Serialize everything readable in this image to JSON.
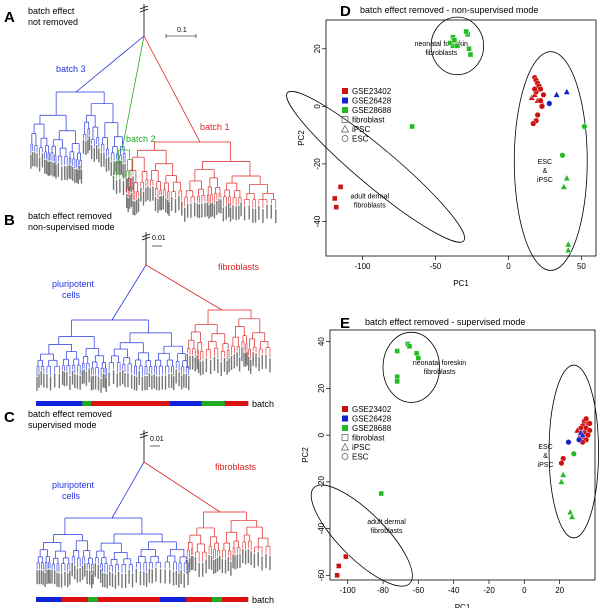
{
  "panels": {
    "A": {
      "letter": "A",
      "title": [
        "batch effect",
        "not removed"
      ],
      "scale": "0.1",
      "labels": [
        {
          "text": "batch 3",
          "color": "#2233dd"
        },
        {
          "text": "batch 2",
          "color": "#22aa22"
        },
        {
          "text": "batch 1",
          "color": "#dd2222"
        }
      ]
    },
    "B": {
      "letter": "B",
      "title": [
        "batch effect removed",
        "non-supervised mode"
      ],
      "scale": "0.01",
      "labels": [
        {
          "text": "pluripotent",
          "color": "#2233dd"
        },
        {
          "text": "cells",
          "color": "#2233dd"
        },
        {
          "text": "fibroblasts",
          "color": "#dd2222"
        }
      ],
      "bar_label": "batch"
    },
    "C": {
      "letter": "C",
      "title": [
        "batch effect removed",
        "supervised mode"
      ],
      "scale": "0.01",
      "labels": [
        {
          "text": "pluripotent",
          "color": "#2233dd"
        },
        {
          "text": "cells",
          "color": "#2233dd"
        },
        {
          "text": "fibroblasts",
          "color": "#dd2222"
        }
      ],
      "bar_label": "batch"
    }
  },
  "batch_bar_colors": {
    "GSE23402": "#dd1111",
    "GSE26428": "#1122dd",
    "GSE28688": "#22aa22"
  },
  "batch_bars": {
    "B": [
      "GSE26428",
      "GSE26428",
      "GSE28688",
      "GSE23402",
      "GSE23402",
      "GSE23402",
      "GSE23402",
      "GSE26428",
      "GSE26428",
      "GSE28688",
      "GSE23402"
    ],
    "C": [
      "GSE26428",
      "GSE23402",
      "GSE28688",
      "GSE23402",
      "GSE23402",
      "GSE23402",
      "GSE26428",
      "GSE23402",
      "GSE28688",
      "GSE23402"
    ]
  },
  "chart_data": [
    {
      "id": "D",
      "type": "scatter",
      "letter": "D",
      "title": "batch effect removed - non-supervised mode",
      "xlabel": "PC1",
      "ylabel": "PC2",
      "xlim": [
        -125,
        60
      ],
      "ylim": [
        -52,
        30
      ],
      "xticks": [
        -100,
        -50,
        0,
        50
      ],
      "yticks": [
        -40,
        -20,
        0,
        20
      ],
      "legend": {
        "placement": "left",
        "items": [
          {
            "label": "GSE23402",
            "shape": "filled-square",
            "color": "#cc1111"
          },
          {
            "label": "GSE26428",
            "shape": "filled-square",
            "color": "#1122cc"
          },
          {
            "label": "GSE28688",
            "shape": "filled-square",
            "color": "#22bb22"
          },
          {
            "label": "fibroblast",
            "shape": "open-square",
            "color": "#555555"
          },
          {
            "label": "iPSC",
            "shape": "open-triangle",
            "color": "#555555"
          },
          {
            "label": "ESC",
            "shape": "open-circle",
            "color": "#555555"
          }
        ]
      },
      "annotations": [
        {
          "lines": [
            "neonatal foreskin",
            "fibroblasts"
          ],
          "x": -46,
          "y": 21
        },
        {
          "lines": [
            "ESC",
            "&",
            "iPSC"
          ],
          "x": 25,
          "y": -20
        },
        {
          "lines": [
            "adult dermal",
            "fibroblasts"
          ],
          "x": -95,
          "y": -32
        }
      ],
      "ellipses": [
        {
          "cx": -35,
          "cy": 21,
          "rx": 18,
          "ry": 10
        },
        {
          "cx": 29,
          "cy": -19,
          "rx": 25,
          "ry": 38,
          "rot": 0
        },
        {
          "cx": -91,
          "cy": -21,
          "rx": 13,
          "ry": 40,
          "rot": -50
        }
      ],
      "series": [
        {
          "name": "GSE28688 fibroblast",
          "shape": "square",
          "color": "#22bb22",
          "points": [
            [
              -38,
              24
            ],
            [
              -38,
              21
            ],
            [
              -40,
              22
            ],
            [
              -37,
              23
            ],
            [
              -28,
              25
            ],
            [
              -29,
              26
            ],
            [
              -27,
              20
            ],
            [
              -26,
              18
            ],
            [
              -35,
              21
            ],
            [
              -66,
              -7
            ]
          ]
        },
        {
          "name": "GSE23402 fibroblast",
          "shape": "square",
          "color": "#cc1111",
          "points": [
            [
              -115,
              -28
            ],
            [
              -119,
              -32
            ],
            [
              -118,
              -35
            ]
          ]
        },
        {
          "name": "GSE23402 iPSC",
          "shape": "triangle",
          "color": "#cc1111",
          "points": [
            [
              16,
              3
            ],
            [
              20,
              2
            ],
            [
              23,
              1
            ],
            [
              18,
              4
            ]
          ]
        },
        {
          "name": "GSE23402 ESC",
          "shape": "circle",
          "color": "#cc1111",
          "points": [
            [
              18,
              10
            ],
            [
              19,
              9
            ],
            [
              20,
              8
            ],
            [
              21,
              7
            ],
            [
              22,
              6
            ],
            [
              19,
              5
            ],
            [
              24,
              4
            ],
            [
              22,
              2
            ],
            [
              23,
              0
            ],
            [
              18,
              6
            ],
            [
              20,
              -3
            ],
            [
              19,
              -5
            ],
            [
              17,
              -6
            ]
          ]
        },
        {
          "name": "GSE26428 iPSC",
          "shape": "triangle",
          "color": "#1122cc",
          "points": [
            [
              33,
              4
            ],
            [
              40,
              5
            ]
          ]
        },
        {
          "name": "GSE26428 ESC",
          "shape": "circle",
          "color": "#1122cc",
          "points": [
            [
              28,
              1
            ]
          ]
        },
        {
          "name": "GSE28688 iPSC",
          "shape": "triangle",
          "color": "#22bb22",
          "points": [
            [
              40,
              -25
            ],
            [
              38,
              -28
            ],
            [
              41,
              -48
            ],
            [
              41,
              -50
            ]
          ]
        },
        {
          "name": "GSE28688 ESC",
          "shape": "circle",
          "color": "#22bb22",
          "points": [
            [
              52,
              -7
            ],
            [
              37,
              -17
            ]
          ]
        }
      ]
    },
    {
      "id": "E",
      "type": "scatter",
      "letter": "E",
      "title": "batch effect removed - supervised mode",
      "xlabel": "PC1",
      "ylabel": "PC2",
      "xlim": [
        -110,
        40
      ],
      "ylim": [
        -62,
        45
      ],
      "xticks": [
        -100,
        -80,
        -60,
        -40,
        -20,
        0,
        20
      ],
      "yticks": [
        -60,
        -40,
        -20,
        0,
        20,
        40
      ],
      "legend": {
        "placement": "left",
        "items": [
          {
            "label": "GSE23402",
            "shape": "filled-square",
            "color": "#cc1111"
          },
          {
            "label": "GSE26428",
            "shape": "filled-square",
            "color": "#1122cc"
          },
          {
            "label": "GSE28688",
            "shape": "filled-square",
            "color": "#22bb22"
          },
          {
            "label": "fibroblast",
            "shape": "open-square",
            "color": "#555555"
          },
          {
            "label": "iPSC",
            "shape": "open-triangle",
            "color": "#555555"
          },
          {
            "label": "ESC",
            "shape": "open-circle",
            "color": "#555555"
          }
        ]
      },
      "annotations": [
        {
          "lines": [
            "neonatal foreskin",
            "fibroblasts"
          ],
          "x": -48,
          "y": 30
        },
        {
          "lines": [
            "ESC",
            "&",
            "iPSC"
          ],
          "x": 12,
          "y": -6
        },
        {
          "lines": [
            "adult dermal",
            "fibroblasts"
          ],
          "x": -78,
          "y": -38
        }
      ],
      "ellipses": [
        {
          "cx": -64,
          "cy": 29,
          "rx": 16,
          "ry": 15
        },
        {
          "cx": 28,
          "cy": -7,
          "rx": 14,
          "ry": 37,
          "rot": 0
        },
        {
          "cx": -92,
          "cy": -43,
          "rx": 13,
          "ry": 29,
          "rot": -45
        }
      ],
      "series": [
        {
          "name": "GSE28688 fibroblast",
          "shape": "square",
          "color": "#22bb22",
          "points": [
            [
              -66,
              39
            ],
            [
              -65,
              38
            ],
            [
              -72,
              36
            ],
            [
              -61,
              35
            ],
            [
              -60,
              33
            ],
            [
              -72,
              25
            ],
            [
              -72,
              23
            ],
            [
              -81,
              -25
            ]
          ]
        },
        {
          "name": "GSE23402 fibroblast",
          "shape": "square",
          "color": "#cc1111",
          "points": [
            [
              -101,
              -52
            ],
            [
              -105,
              -56
            ],
            [
              -106,
              -60
            ]
          ]
        },
        {
          "name": "GSE23402 ESC",
          "shape": "circle",
          "color": "#cc1111",
          "points": [
            [
              34,
              6
            ],
            [
              36,
              5
            ],
            [
              33,
              4
            ],
            [
              35,
              3
            ],
            [
              37,
              2
            ],
            [
              34,
              1
            ],
            [
              36,
              0
            ],
            [
              33,
              -1
            ],
            [
              35,
              -2
            ],
            [
              32,
              3
            ],
            [
              37,
              5
            ],
            [
              35,
              7
            ],
            [
              33,
              -3
            ],
            [
              22,
              -10
            ],
            [
              21,
              -12
            ]
          ]
        },
        {
          "name": "GSE23402 iPSC",
          "shape": "triangle",
          "color": "#cc1111",
          "points": [
            [
              30,
              2
            ],
            [
              31,
              -1
            ]
          ]
        },
        {
          "name": "GSE26428 iPSC",
          "shape": "triangle",
          "color": "#1122cc",
          "points": [
            [
              32,
              1
            ],
            [
              33,
              0
            ]
          ]
        },
        {
          "name": "GSE26428 ESC",
          "shape": "circle",
          "color": "#1122cc",
          "points": [
            [
              25,
              -3
            ],
            [
              31,
              -2
            ]
          ]
        },
        {
          "name": "GSE28688 iPSC",
          "shape": "triangle",
          "color": "#22bb22",
          "points": [
            [
              22,
              -17
            ],
            [
              21,
              -20
            ],
            [
              26,
              -33
            ],
            [
              27,
              -35
            ]
          ]
        },
        {
          "name": "GSE28688 ESC",
          "shape": "circle",
          "color": "#22bb22",
          "points": [
            [
              28,
              -8
            ]
          ]
        }
      ]
    }
  ]
}
